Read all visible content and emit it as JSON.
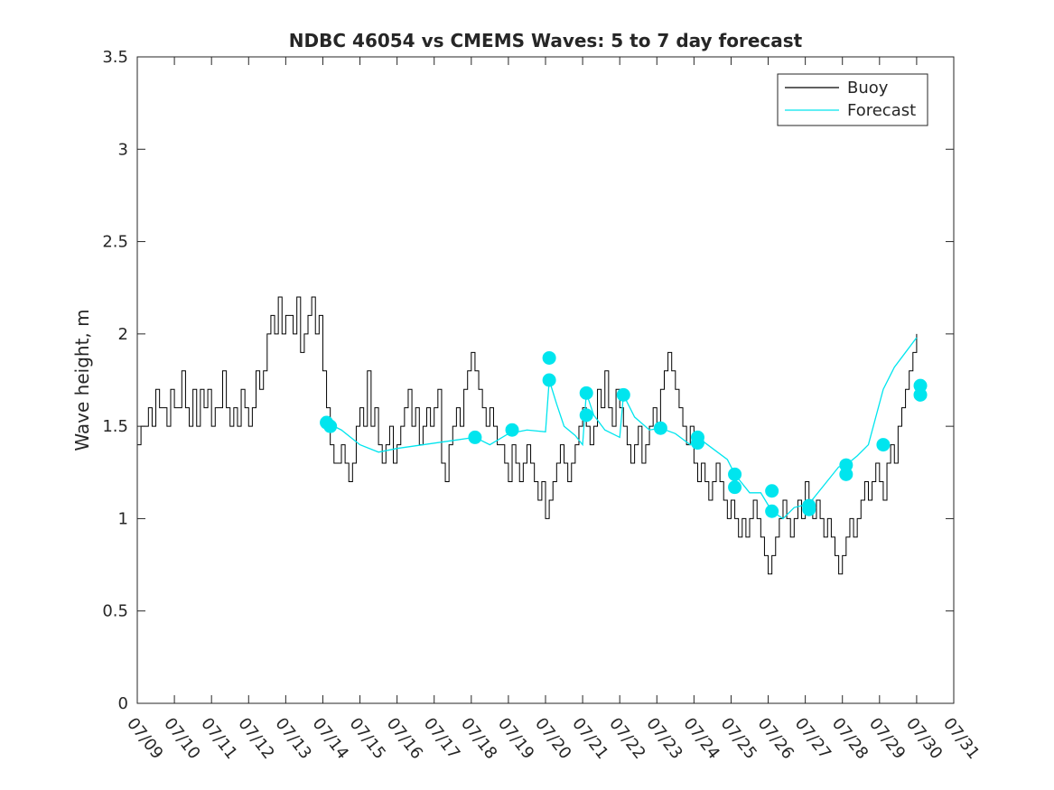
{
  "chart_data": {
    "type": "line",
    "title": "NDBC 46054 vs CMEMS Waves: 5 to 7 day forecast",
    "xlabel": "",
    "ylabel": "Wave height, m",
    "xlim": [
      "07/09",
      "07/31"
    ],
    "ylim": [
      0,
      3.5
    ],
    "yticks": [
      "0",
      "0.5",
      "1",
      "1.5",
      "2",
      "2.5",
      "3",
      "3.5"
    ],
    "xticks": [
      "07/09",
      "07/10",
      "07/11",
      "07/12",
      "07/13",
      "07/14",
      "07/15",
      "07/16",
      "07/17",
      "07/18",
      "07/19",
      "07/20",
      "07/21",
      "07/22",
      "07/23",
      "07/24",
      "07/25",
      "07/26",
      "07/27",
      "07/28",
      "07/29",
      "07/30",
      "07/31"
    ],
    "grid": false,
    "legend": {
      "position": "top-right",
      "entries": [
        {
          "label": "Buoy",
          "color": "#000000"
        },
        {
          "label": "Forecast",
          "color": "#00e5ee"
        }
      ]
    },
    "colors": {
      "buoy": "#000000",
      "forecast": "#00e5ee"
    },
    "series": [
      {
        "name": "Buoy",
        "x_days_after_07_09": [
          0,
          0.1,
          0.2,
          0.3,
          0.4,
          0.5,
          0.6,
          0.7,
          0.8,
          0.9,
          1.0,
          1.1,
          1.2,
          1.3,
          1.4,
          1.5,
          1.6,
          1.7,
          1.8,
          1.9,
          2.0,
          2.1,
          2.2,
          2.3,
          2.4,
          2.5,
          2.6,
          2.7,
          2.8,
          2.9,
          3.0,
          3.1,
          3.2,
          3.3,
          3.4,
          3.5,
          3.6,
          3.7,
          3.8,
          3.9,
          4.0,
          4.1,
          4.2,
          4.3,
          4.4,
          4.5,
          4.6,
          4.7,
          4.8,
          4.9,
          5.0,
          5.1,
          5.2,
          5.3,
          5.4,
          5.5,
          5.6,
          5.7,
          5.8,
          5.9,
          6.0,
          6.1,
          6.2,
          6.3,
          6.4,
          6.5,
          6.6,
          6.7,
          6.8,
          6.9,
          7.0,
          7.1,
          7.2,
          7.3,
          7.4,
          7.5,
          7.6,
          7.7,
          7.8,
          7.9,
          8.0,
          8.1,
          8.2,
          8.3,
          8.4,
          8.5,
          8.6,
          8.7,
          8.8,
          8.9,
          9.0,
          9.1,
          9.2,
          9.3,
          9.4,
          9.5,
          9.6,
          9.7,
          9.8,
          9.9,
          10.0,
          10.1,
          10.2,
          10.3,
          10.4,
          10.5,
          10.6,
          10.7,
          10.8,
          10.9,
          11.0,
          11.1,
          11.2,
          11.3,
          11.4,
          11.5,
          11.6,
          11.7,
          11.8,
          11.9,
          12.0,
          12.1,
          12.2,
          12.3,
          12.4,
          12.5,
          12.6,
          12.7,
          12.8,
          12.9,
          13.0,
          13.1,
          13.2,
          13.3,
          13.4,
          13.5,
          13.6,
          13.7,
          13.8,
          13.9,
          14.0,
          14.1,
          14.2,
          14.3,
          14.4,
          14.5,
          14.6,
          14.7,
          14.8,
          14.9,
          15.0,
          15.1,
          15.2,
          15.3,
          15.4,
          15.5,
          15.6,
          15.7,
          15.8,
          15.9,
          16.0,
          16.1,
          16.2,
          16.3,
          16.4,
          16.5,
          16.6,
          16.7,
          16.8,
          16.9,
          17.0,
          17.1,
          17.2,
          17.3,
          17.4,
          17.5,
          17.6,
          17.7,
          17.8,
          17.9,
          18.0,
          18.1,
          18.2,
          18.3,
          18.4,
          18.5,
          18.6,
          18.7,
          18.8,
          18.9,
          19.0,
          19.1,
          19.2,
          19.3,
          19.4,
          19.5,
          19.6,
          19.7,
          19.8,
          19.9,
          20.0,
          20.1,
          20.2,
          20.3,
          20.4,
          20.5,
          20.6,
          20.7,
          20.8,
          20.9,
          21.0
        ],
        "y": [
          1.4,
          1.5,
          1.5,
          1.6,
          1.5,
          1.7,
          1.6,
          1.6,
          1.5,
          1.7,
          1.6,
          1.6,
          1.8,
          1.6,
          1.5,
          1.7,
          1.5,
          1.7,
          1.6,
          1.7,
          1.5,
          1.6,
          1.6,
          1.8,
          1.6,
          1.5,
          1.6,
          1.5,
          1.7,
          1.6,
          1.5,
          1.6,
          1.8,
          1.7,
          1.8,
          2.0,
          2.1,
          2.0,
          2.2,
          2.0,
          2.1,
          2.1,
          2.0,
          2.2,
          1.9,
          2.0,
          2.1,
          2.2,
          2.0,
          2.1,
          1.8,
          1.6,
          1.4,
          1.3,
          1.3,
          1.4,
          1.3,
          1.2,
          1.3,
          1.5,
          1.6,
          1.5,
          1.8,
          1.5,
          1.6,
          1.4,
          1.3,
          1.4,
          1.5,
          1.3,
          1.4,
          1.5,
          1.6,
          1.7,
          1.5,
          1.6,
          1.4,
          1.5,
          1.6,
          1.5,
          1.6,
          1.7,
          1.3,
          1.2,
          1.4,
          1.5,
          1.6,
          1.5,
          1.7,
          1.8,
          1.9,
          1.8,
          1.7,
          1.6,
          1.5,
          1.6,
          1.5,
          1.4,
          1.4,
          1.3,
          1.2,
          1.4,
          1.3,
          1.2,
          1.3,
          1.4,
          1.3,
          1.2,
          1.1,
          1.2,
          1.0,
          1.1,
          1.2,
          1.3,
          1.4,
          1.3,
          1.2,
          1.3,
          1.4,
          1.5,
          1.6,
          1.5,
          1.4,
          1.5,
          1.7,
          1.6,
          1.8,
          1.6,
          1.5,
          1.7,
          1.6,
          1.5,
          1.4,
          1.3,
          1.4,
          1.5,
          1.3,
          1.4,
          1.5,
          1.6,
          1.5,
          1.7,
          1.8,
          1.9,
          1.8,
          1.7,
          1.6,
          1.5,
          1.4,
          1.5,
          1.3,
          1.2,
          1.3,
          1.2,
          1.1,
          1.2,
          1.3,
          1.2,
          1.1,
          1.0,
          1.1,
          1.0,
          0.9,
          1.0,
          0.9,
          1.0,
          1.1,
          1.0,
          0.9,
          0.8,
          0.7,
          0.8,
          0.9,
          1.0,
          1.1,
          1.0,
          0.9,
          1.0,
          1.1,
          1.0,
          1.2,
          1.1,
          1.0,
          1.1,
          1.0,
          0.9,
          1.0,
          0.9,
          0.8,
          0.7,
          0.8,
          0.9,
          1.0,
          0.9,
          1.0,
          1.1,
          1.2,
          1.1,
          1.2,
          1.3,
          1.2,
          1.1,
          1.3,
          1.4,
          1.3,
          1.5,
          1.6,
          1.7,
          1.8,
          1.9,
          2.0
        ]
      },
      {
        "name": "Forecast",
        "x_days_after_07_09": [
          5.1,
          5.5,
          6.0,
          6.5,
          7.0,
          9.1,
          9.5,
          10.0,
          10.5,
          11.0,
          11.1,
          11.3,
          11.5,
          11.8,
          12.0,
          12.1,
          12.3,
          12.6,
          13.0,
          13.1,
          13.4,
          13.8,
          14.1,
          14.5,
          14.9,
          15.1,
          15.5,
          15.9,
          16.1,
          16.5,
          16.8,
          17.1,
          17.4,
          17.7,
          18.1,
          18.5,
          18.9,
          19.1,
          19.4,
          19.7,
          20.1,
          20.4,
          20.7,
          21.0
        ],
        "y": [
          1.52,
          1.48,
          1.4,
          1.36,
          1.38,
          1.44,
          1.4,
          1.46,
          1.48,
          1.47,
          1.75,
          1.62,
          1.5,
          1.45,
          1.4,
          1.68,
          1.56,
          1.48,
          1.44,
          1.67,
          1.55,
          1.48,
          1.49,
          1.46,
          1.4,
          1.44,
          1.38,
          1.32,
          1.24,
          1.14,
          1.14,
          1.04,
          1.0,
          1.06,
          1.08,
          1.18,
          1.28,
          1.29,
          1.34,
          1.4,
          1.7,
          1.82,
          1.9,
          1.98
        ]
      }
    ],
    "forecast_markers": [
      {
        "x": 5.1,
        "y": 1.52
      },
      {
        "x": 5.2,
        "y": 1.5
      },
      {
        "x": 9.1,
        "y": 1.44
      },
      {
        "x": 10.1,
        "y": 1.48
      },
      {
        "x": 11.1,
        "y": 1.87
      },
      {
        "x": 11.1,
        "y": 1.75
      },
      {
        "x": 12.1,
        "y": 1.68
      },
      {
        "x": 12.1,
        "y": 1.56
      },
      {
        "x": 13.1,
        "y": 1.67
      },
      {
        "x": 14.1,
        "y": 1.49
      },
      {
        "x": 15.1,
        "y": 1.44
      },
      {
        "x": 15.1,
        "y": 1.41
      },
      {
        "x": 16.1,
        "y": 1.24
      },
      {
        "x": 16.1,
        "y": 1.17
      },
      {
        "x": 17.1,
        "y": 1.15
      },
      {
        "x": 17.1,
        "y": 1.04
      },
      {
        "x": 18.1,
        "y": 1.07
      },
      {
        "x": 18.1,
        "y": 1.05
      },
      {
        "x": 19.1,
        "y": 1.29
      },
      {
        "x": 19.1,
        "y": 1.24
      },
      {
        "x": 20.1,
        "y": 1.4
      },
      {
        "x": 21.1,
        "y": 1.72
      },
      {
        "x": 21.1,
        "y": 1.67
      }
    ]
  }
}
